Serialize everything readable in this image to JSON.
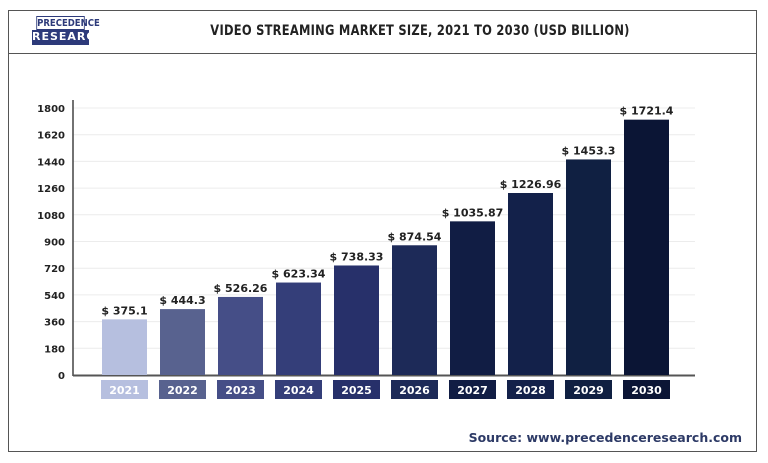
{
  "logo": {
    "line1": "PRECEDENCE",
    "line2": "RESEARCH"
  },
  "source": "Source: www.precedenceresearch.com",
  "chart_data": {
    "type": "bar",
    "title": "VIDEO STREAMING MARKET SIZE, 2021 TO 2030 (USD BILLION)",
    "xlabel": "",
    "ylabel": "",
    "categories": [
      "2021",
      "2022",
      "2023",
      "2024",
      "2025",
      "2026",
      "2027",
      "2028",
      "2029",
      "2030"
    ],
    "values": [
      375.1,
      444.3,
      526.26,
      623.34,
      738.33,
      874.54,
      1035.87,
      1226.96,
      1453.3,
      1721.4
    ],
    "data_labels": [
      "$ 375.1",
      "$ 444.3",
      "$ 526.26",
      "$ 623.34",
      "$ 738.33",
      "$ 874.54",
      "$ 1035.87",
      "$ 1226.96",
      "$ 1453.3",
      "$ 1721.4"
    ],
    "ylim": [
      0,
      1800
    ],
    "yticks": [
      0,
      180,
      360,
      540,
      720,
      900,
      1080,
      1260,
      1440,
      1620,
      1800
    ],
    "grid": true,
    "colors": [
      "#b6bfdf",
      "#58628f",
      "#454e87",
      "#343e79",
      "#27306a",
      "#1d2a58",
      "#111d44",
      "#13214a",
      "#102042",
      "#0b1535"
    ]
  }
}
